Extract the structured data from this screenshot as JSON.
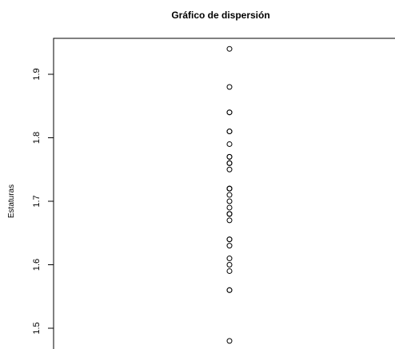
{
  "chart_data": {
    "type": "scatter",
    "title": "Gráfico de dispersión",
    "xlabel": "",
    "ylabel": "Estaturas",
    "ylim": [
      1.46,
      1.97
    ],
    "yticks": [
      1.5,
      1.6,
      1.7,
      1.8,
      1.9
    ],
    "ytick_labels": [
      "1.5",
      "1.6",
      "1.7",
      "1.8",
      "1.9"
    ],
    "grid": false,
    "marker": "open-circle",
    "marker_color": "#000000",
    "series": [
      {
        "x": [
          1,
          1,
          1,
          1,
          1,
          1,
          1,
          1,
          1,
          1,
          1,
          1,
          1,
          1,
          1,
          1,
          1,
          1,
          1,
          1,
          1,
          1,
          1,
          1,
          1,
          1,
          1,
          1,
          1,
          1,
          1,
          1
        ],
        "y": [
          1.48,
          1.56,
          1.56,
          1.59,
          1.6,
          1.61,
          1.63,
          1.64,
          1.64,
          1.67,
          1.68,
          1.68,
          1.69,
          1.7,
          1.71,
          1.72,
          1.72,
          1.75,
          1.76,
          1.76,
          1.77,
          1.77,
          1.79,
          1.81,
          1.81,
          1.84,
          1.84,
          1.88,
          1.94,
          1.68,
          1.72,
          1.76
        ]
      }
    ]
  }
}
